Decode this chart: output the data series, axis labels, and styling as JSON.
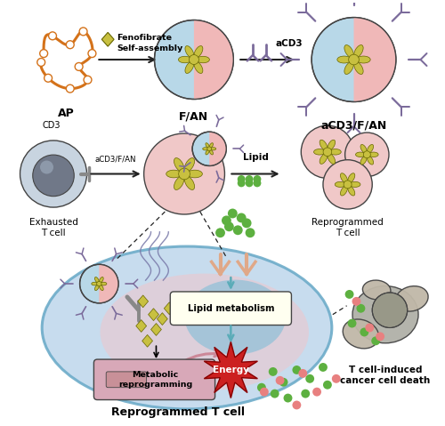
{
  "bg_color": "#ffffff",
  "labels": {
    "AP": "AP",
    "FAN": "F/AN",
    "aCD3FAN": "aCD3/F/AN",
    "exhausted": "Exhausted\nT cell",
    "reprogrammed_right": "Reprogrammed\nT cell",
    "reprogrammed_large": "Reprogrammed T cell",
    "tcell_death": "T cell-induced\ncancer cell death",
    "fenofibrate": "Fenofibrate",
    "self_assembly": "Self-assembly",
    "aCD3": "aCD3",
    "aCD3FAN_arrow": "aCD3/F/AN",
    "lipid": "Lipid",
    "lipid_metabolism": "Lipid metabolism",
    "metabolic": "Metabolic\nreprogramming",
    "energy": "Energy",
    "cd3": "CD3"
  },
  "colors": {
    "dna_orange": "#D4721A",
    "dna_circle_fill": "#ffffff",
    "nanoparticle_blue": "#B8D8E8",
    "nanoparticle_pink": "#F0B8B8",
    "antibody_purple": "#7B6B9B",
    "fenofibrate_yellow": "#C8C040",
    "fenofibrate_outline": "#666600",
    "dark_gray": "#444444",
    "mid_gray": "#888888",
    "light_gray": "#CCCCCC",
    "green_dots": "#5DB040",
    "red_dots": "#E88080",
    "cell_blue_bg": "#C0D8EC",
    "cell_blue_border": "#6AAAC8",
    "cell_pink_inner": "#EAC8D0",
    "cell_organelle_blue": "#90C0D8",
    "metabolic_box": "#D8A8B8",
    "lipidmet_box_fill": "#FFFFF0",
    "lipidmet_box_edge": "#888844",
    "energy_red": "#CC2020",
    "energy_dark": "#880000",
    "t_cell_outer": "#C8D4E0",
    "t_cell_nucleus": "#707888",
    "cancer_main": "#B0B0A8",
    "cancer_lobe": "#C0B8A8",
    "cancer_dark": "#989888",
    "receptor_peach": "#E0A888",
    "arrow_color": "#222222",
    "pink_cell_fill": "#F0C8C8",
    "pink_cell_inner": "#E89898"
  }
}
